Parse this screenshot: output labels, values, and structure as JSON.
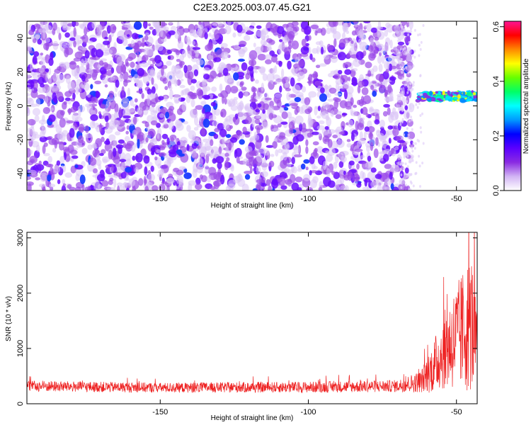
{
  "title": "C2E3.2025.003.07.45.G21",
  "chart_data": [
    {
      "type": "heatmap",
      "xlabel": "Height of straight line (km)",
      "ylabel": "Frequency (Hz)",
      "xlim": [
        -195,
        -43
      ],
      "ylim": [
        -50,
        50
      ],
      "x_ticks": [
        -150,
        -100,
        -50
      ],
      "y_ticks": [
        -40,
        -20,
        0,
        20,
        40
      ],
      "signal_band": {
        "x_range": [
          -63,
          -43
        ],
        "frequency_hz": [
          3,
          8
        ]
      },
      "colorbar": {
        "label": "Normalized spectral amplitude",
        "range": [
          0,
          0.62
        ],
        "ticks": [
          0.0,
          0.2,
          0.4,
          0.6
        ],
        "colors": [
          "#ffffff",
          "#d2b4f4",
          "#8a2be2",
          "#5a00ff",
          "#0000ff",
          "#0099ff",
          "#00ffff",
          "#00ff66",
          "#66ff00",
          "#ffff00",
          "#ff8800",
          "#ff0000",
          "#ff1493"
        ]
      },
      "background_color": "#8a2be2",
      "signal_color": "#00e5ff"
    },
    {
      "type": "line",
      "xlabel": "Height of straight line (km)",
      "ylabel": "SNR (10 * v/v)",
      "xlim": [
        -195,
        -43
      ],
      "ylim": [
        0,
        3100
      ],
      "x_ticks": [
        -150,
        -100,
        -50
      ],
      "y_ticks": [
        0,
        1000,
        2000,
        3000
      ],
      "color": "#ee2222",
      "envelope": {
        "x": [
          -195,
          -150,
          -100,
          -70,
          -62,
          -58,
          -55,
          -52,
          -48,
          -45,
          -43
        ],
        "mean": [
          320,
          290,
          300,
          320,
          400,
          650,
          900,
          1100,
          1300,
          1500,
          1000
        ],
        "spread": [
          100,
          90,
          100,
          110,
          200,
          450,
          650,
          850,
          1100,
          1300,
          700
        ]
      }
    }
  ]
}
